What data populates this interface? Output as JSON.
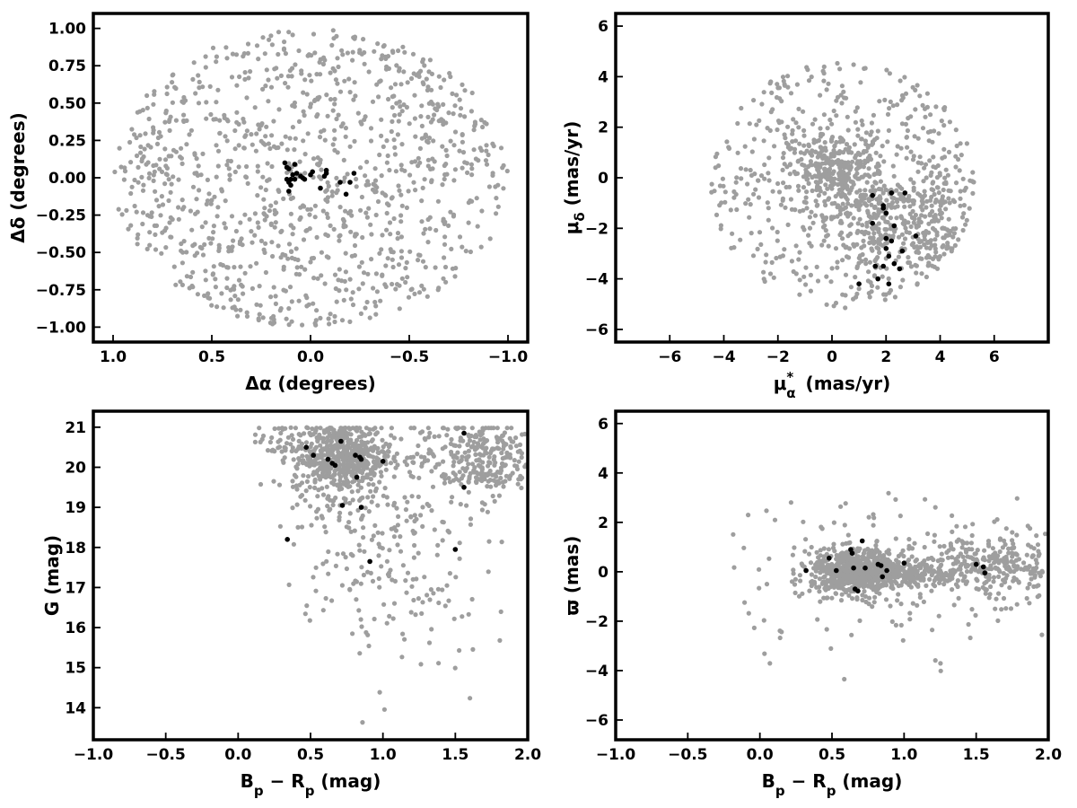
{
  "colors": {
    "field": "#9e9e9e",
    "members": "#000000",
    "axes": "#000000"
  },
  "chart_data": [
    {
      "id": "position",
      "type": "scatter",
      "xlabel": "Δα (degrees)",
      "ylabel": "Δδ (degrees)",
      "xlim": [
        1.1,
        -1.1
      ],
      "ylim": [
        -1.1,
        1.1
      ],
      "x_reversed": true,
      "xticks": [
        1.0,
        0.5,
        0.0,
        -0.5,
        -1.0
      ],
      "xtick_labels": [
        "1.0",
        "0.5",
        "0.0",
        "−0.5",
        "−1.0"
      ],
      "yticks": [
        1.0,
        0.75,
        0.5,
        0.25,
        0.0,
        -0.25,
        -0.5,
        -0.75,
        -1.0
      ],
      "ytick_labels": [
        "1.00",
        "0.75",
        "0.50",
        "0.25",
        "0.00",
        "−0.25",
        "−0.50",
        "−0.75",
        "−1.00"
      ],
      "field_distribution": {
        "shape": "disk",
        "center": [
          0,
          0
        ],
        "radius": 1.0,
        "count": 1100
      },
      "series": [
        {
          "role": "members",
          "points": [
            [
              0.12,
              0.07
            ],
            [
              0.11,
              0.06
            ],
            [
              0.08,
              0.09
            ],
            [
              0.13,
              0.1
            ],
            [
              0.09,
              0.02
            ],
            [
              0.07,
              0.03
            ],
            [
              0.05,
              0.01
            ],
            [
              0.1,
              -0.01
            ],
            [
              0.03,
              -0.01
            ],
            [
              0.12,
              -0.01
            ],
            [
              0.11,
              -0.03
            ],
            [
              0.1,
              -0.05
            ],
            [
              0.11,
              -0.09
            ],
            [
              0.08,
              -0.01
            ],
            [
              0.04,
              0.0
            ],
            [
              0.0,
              0.02
            ],
            [
              -0.01,
              0.04
            ],
            [
              -0.07,
              0.01
            ],
            [
              -0.08,
              0.03
            ],
            [
              -0.08,
              0.05
            ],
            [
              -0.05,
              -0.07
            ],
            [
              -0.15,
              -0.03
            ],
            [
              -0.18,
              -0.11
            ],
            [
              -0.2,
              -0.03
            ],
            [
              -0.22,
              0.03
            ]
          ]
        }
      ]
    },
    {
      "id": "proper-motion",
      "type": "scatter",
      "xlabel": "μ*α (mas/yr)",
      "ylabel": "μδ (mas/yr)",
      "xlim": [
        -8,
        8
      ],
      "ylim": [
        -6.5,
        6.5
      ],
      "xticks": [
        -6,
        -4,
        -2,
        0,
        2,
        4,
        6
      ],
      "xtick_labels": [
        "−6",
        "−4",
        "−2",
        "0",
        "2",
        "4",
        "6"
      ],
      "yticks": [
        -6,
        -4,
        -2,
        0,
        2,
        4,
        6
      ],
      "ytick_labels": [
        "−6",
        "−4",
        "−2",
        "0",
        "2",
        "4",
        "6"
      ],
      "field_distribution": {
        "shape": "disk",
        "center": [
          0.4,
          -0.3
        ],
        "radius": 4.9,
        "count": 1100,
        "clumps": [
          [
            0.2,
            0.2
          ],
          [
            2.0,
            -2.0
          ],
          [
            3.8,
            -1.6
          ]
        ]
      },
      "series": [
        {
          "role": "members",
          "points": [
            [
              1.5,
              -0.7
            ],
            [
              1.9,
              -1.1
            ],
            [
              1.9,
              -1.2
            ],
            [
              2.0,
              -1.4
            ],
            [
              2.2,
              -0.6
            ],
            [
              2.7,
              -0.6
            ],
            [
              1.5,
              -1.8
            ],
            [
              2.3,
              -1.9
            ],
            [
              2.0,
              -2.4
            ],
            [
              2.2,
              -2.5
            ],
            [
              2.0,
              -2.8
            ],
            [
              3.1,
              -2.3
            ],
            [
              2.1,
              -3.1
            ],
            [
              1.6,
              -3.5
            ],
            [
              1.9,
              -3.5
            ],
            [
              2.3,
              -3.4
            ],
            [
              2.5,
              -3.6
            ],
            [
              1.7,
              -4.0
            ],
            [
              1.0,
              -4.2
            ],
            [
              2.1,
              -4.2
            ],
            [
              2.6,
              -2.9
            ]
          ]
        }
      ]
    },
    {
      "id": "cmd",
      "type": "scatter",
      "xlabel": "Bp − Rp (mag)",
      "ylabel": "G (mag)",
      "xlim": [
        -1.0,
        2.0
      ],
      "ylim": [
        13.2,
        21.4
      ],
      "y_reversed": false,
      "xticks": [
        -1.0,
        -0.5,
        0.0,
        0.5,
        1.0,
        1.5,
        2.0
      ],
      "xtick_labels": [
        "−1.0",
        "−0.5",
        "0.0",
        "0.5",
        "1.0",
        "1.5",
        "2.0"
      ],
      "yticks": [
        14,
        15,
        16,
        17,
        18,
        19,
        20,
        21
      ],
      "ytick_labels": [
        "14",
        "15",
        "16",
        "17",
        "18",
        "19",
        "20",
        "21"
      ],
      "series": [
        {
          "role": "members",
          "points": [
            [
              0.47,
              20.5
            ],
            [
              0.52,
              20.3
            ],
            [
              0.62,
              20.2
            ],
            [
              0.65,
              20.1
            ],
            [
              0.67,
              20.05
            ],
            [
              0.71,
              20.65
            ],
            [
              0.81,
              20.3
            ],
            [
              0.84,
              20.25
            ],
            [
              0.85,
              20.2
            ],
            [
              1.0,
              20.15
            ],
            [
              0.82,
              19.75
            ],
            [
              0.72,
              19.05
            ],
            [
              0.85,
              19.0
            ],
            [
              1.56,
              20.85
            ],
            [
              1.56,
              19.5
            ],
            [
              0.34,
              18.2
            ],
            [
              1.5,
              17.95
            ],
            [
              0.91,
              17.65
            ]
          ]
        }
      ]
    },
    {
      "id": "parallax",
      "type": "scatter",
      "xlabel": "Bp − Rp (mag)",
      "ylabel": "ϖ (mas)",
      "xlim": [
        -1.0,
        2.0
      ],
      "ylim": [
        -6.8,
        6.5
      ],
      "xticks": [
        -1.0,
        -0.5,
        0.0,
        0.5,
        1.0,
        1.5,
        2.0
      ],
      "xtick_labels": [
        "−1.0",
        "−0.5",
        "0.0",
        "0.5",
        "1.0",
        "1.5",
        "2.0"
      ],
      "yticks": [
        -6,
        -4,
        -2,
        0,
        2,
        4,
        6
      ],
      "ytick_labels": [
        "−6",
        "−4",
        "−2",
        "0",
        "2",
        "4",
        "6"
      ],
      "series": [
        {
          "role": "members",
          "points": [
            [
              0.32,
              0.05
            ],
            [
              0.48,
              0.55
            ],
            [
              0.53,
              0.05
            ],
            [
              0.63,
              0.9
            ],
            [
              0.64,
              0.75
            ],
            [
              0.65,
              0.15
            ],
            [
              0.66,
              -0.7
            ],
            [
              0.68,
              -0.78
            ],
            [
              0.71,
              1.25
            ],
            [
              0.73,
              0.15
            ],
            [
              0.82,
              0.3
            ],
            [
              0.84,
              0.25
            ],
            [
              0.85,
              -0.2
            ],
            [
              0.88,
              0.05
            ],
            [
              1.0,
              0.35
            ],
            [
              1.5,
              0.3
            ],
            [
              1.55,
              0.2
            ],
            [
              1.56,
              -0.05
            ]
          ]
        }
      ]
    }
  ]
}
